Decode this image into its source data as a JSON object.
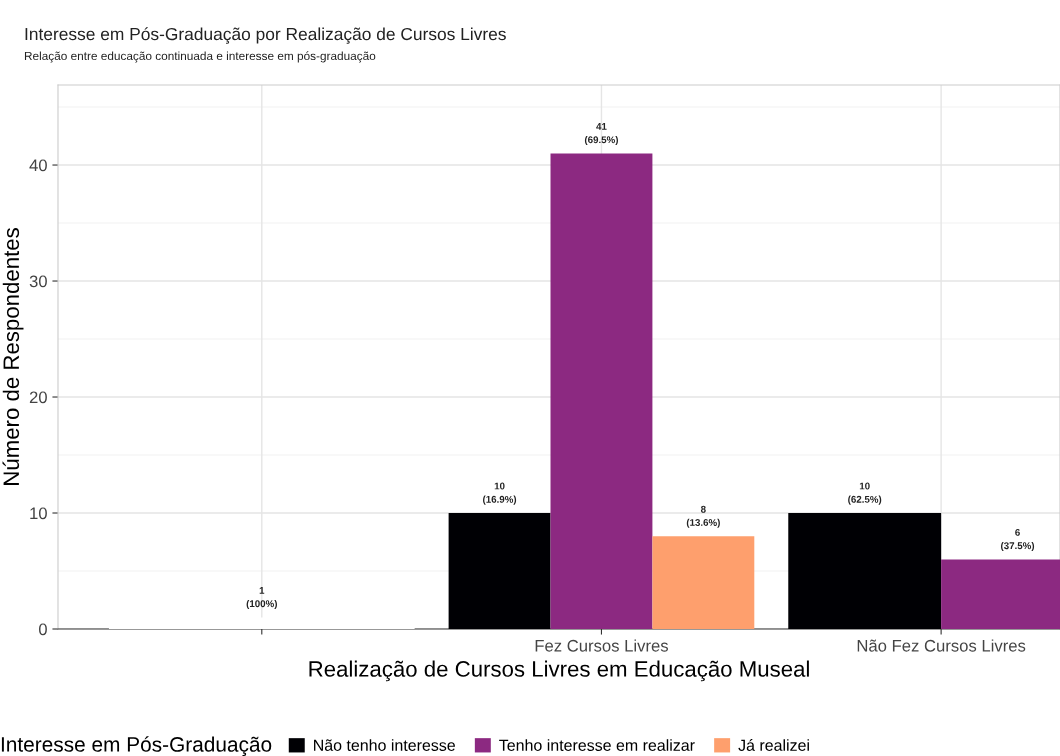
{
  "chart_data": {
    "type": "bar",
    "title": "Interesse em Pós-Graduação por Realização de Cursos Livres",
    "subtitle": "Relação entre educação continuada e interesse em pós-graduação",
    "xlabel": "Realização de Cursos Livres em Educação Museal",
    "ylabel": "Número de Respondentes",
    "legend_title": "Interesse em Pós-Graduação",
    "categories": [
      null,
      "Fez Cursos Livres",
      "Não Fez Cursos Livres"
    ],
    "series": [
      {
        "name": "Não tenho interesse",
        "color": "#000004",
        "values": [
          null,
          10,
          10
        ],
        "value_labels": [
          null,
          "10\n(16.9%)",
          "10\n(62.5%)"
        ]
      },
      {
        "name": "Tenho interesse em realizar",
        "color": "#8c2981",
        "values": [
          null,
          41,
          6
        ],
        "value_labels": [
          null,
          "41\n(69.5%)",
          "6\n(37.5%)"
        ]
      },
      {
        "name": "Já realizei",
        "color": "#fe9f6d",
        "values": [
          null,
          8,
          null
        ],
        "value_labels": [
          null,
          "8\n(13.6%)",
          null
        ]
      },
      {
        "color": "#ffffff",
        "values": [
          1,
          null,
          null
        ],
        "value_labels": [
          "1\n(100%)",
          null,
          null
        ]
      }
    ],
    "ylim": [
      0,
      46.9
    ],
    "yticks": [
      0,
      10,
      20,
      30,
      40
    ],
    "grid": true,
    "legend": "bottom"
  }
}
